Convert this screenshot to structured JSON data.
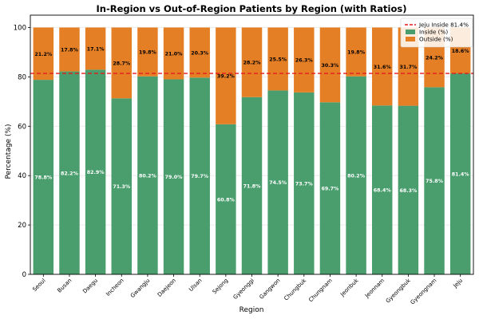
{
  "chart_data": {
    "type": "bar",
    "stacked": true,
    "title": "In-Region vs Out-of-Region Patients by Region (with Ratios)",
    "xlabel": "Region",
    "ylabel": "Percentage (%)",
    "ylim": [
      0,
      105
    ],
    "yticks": [
      0,
      20,
      40,
      60,
      80,
      100
    ],
    "categories": [
      "Seoul",
      "Busan",
      "Daegu",
      "Incheon",
      "Gwangju",
      "Daejeon",
      "Ulsan",
      "Sejong",
      "Gyeonggi",
      "Gangwon",
      "Chungbuk",
      "Chungnam",
      "Jeonbuk",
      "Jeonnam",
      "Gyeongbuk",
      "Gyeongnam",
      "Jeju"
    ],
    "series": [
      {
        "name": "Inside (%)",
        "color": "#4a9e6e",
        "values": [
          78.8,
          82.2,
          82.9,
          71.3,
          80.2,
          79.0,
          79.7,
          60.8,
          71.8,
          74.5,
          73.7,
          69.7,
          80.2,
          68.4,
          68.3,
          75.8,
          81.4
        ],
        "labels": [
          "78.8%",
          "82.2%",
          "82.9%",
          "71.3%",
          "80.2%",
          "79.0%",
          "79.7%",
          "60.8%",
          "71.8%",
          "74.5%",
          "73.7%",
          "69.7%",
          "80.2%",
          "68.4%",
          "68.3%",
          "75.8%",
          "81.4%"
        ]
      },
      {
        "name": "Outside (%)",
        "color": "#e57f25",
        "values": [
          21.2,
          17.8,
          17.1,
          28.7,
          19.8,
          21.0,
          20.3,
          39.2,
          28.2,
          25.5,
          26.3,
          30.3,
          19.8,
          31.6,
          31.7,
          24.2,
          18.6
        ],
        "labels": [
          "21.2%",
          "17.8%",
          "17.1%",
          "28.7%",
          "19.8%",
          "21.0%",
          "20.3%",
          "39.2%",
          "28.2%",
          "25.5%",
          "26.3%",
          "30.3%",
          "19.8%",
          "31.6%",
          "31.7%",
          "24.2%",
          "18.6%"
        ]
      }
    ],
    "reference_line": {
      "name": "Jeju Inside 81.4%",
      "value": 81.4,
      "color": "#e31a1c",
      "style": "dashed"
    },
    "grid": true,
    "legend_position": "top-right"
  }
}
